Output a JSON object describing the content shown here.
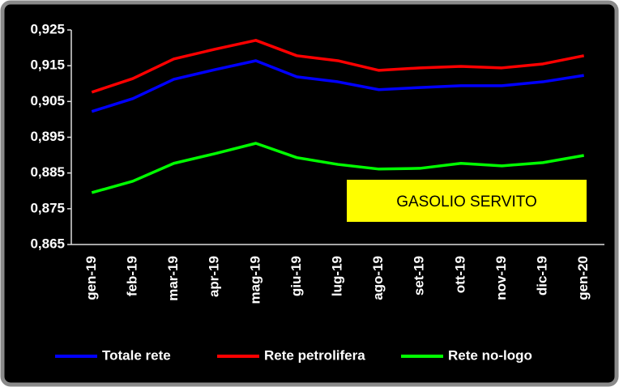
{
  "chart_data": {
    "type": "line",
    "annotation": "GASOLIO SERVITO",
    "categories": [
      "gen-19",
      "feb-19",
      "mar-19",
      "apr-19",
      "mag-19",
      "giu-19",
      "lug-19",
      "ago-19",
      "set-19",
      "ott-19",
      "nov-19",
      "dic-19",
      "gen-20"
    ],
    "series": [
      {
        "name": "Totale rete",
        "color": "#0000ff",
        "values": [
          0.9022,
          0.9058,
          0.9112,
          0.9139,
          0.9164,
          0.9119,
          0.9105,
          0.9083,
          0.9089,
          0.9094,
          0.9094,
          0.9105,
          0.9123
        ]
      },
      {
        "name": "Rete petrolifera",
        "color": "#ff0000",
        "values": [
          0.9076,
          0.9114,
          0.9169,
          0.9196,
          0.9221,
          0.9178,
          0.9164,
          0.9137,
          0.9144,
          0.9148,
          0.9144,
          0.9155,
          0.9178
        ]
      },
      {
        "name": "Rete no-logo",
        "color": "#00ff00",
        "values": [
          0.8795,
          0.8827,
          0.8877,
          0.8904,
          0.8933,
          0.8893,
          0.8874,
          0.8861,
          0.8863,
          0.8877,
          0.887,
          0.8879,
          0.8899
        ]
      }
    ],
    "ylim": [
      0.865,
      0.925
    ],
    "yticks": [
      {
        "value": 0.865,
        "label": "0,865"
      },
      {
        "value": 0.875,
        "label": "0,875"
      },
      {
        "value": 0.885,
        "label": "0,885"
      },
      {
        "value": 0.895,
        "label": "0,895"
      },
      {
        "value": 0.905,
        "label": "0,905"
      },
      {
        "value": 0.915,
        "label": "0,915"
      },
      {
        "value": 0.925,
        "label": "0,925"
      }
    ],
    "grid": false
  }
}
